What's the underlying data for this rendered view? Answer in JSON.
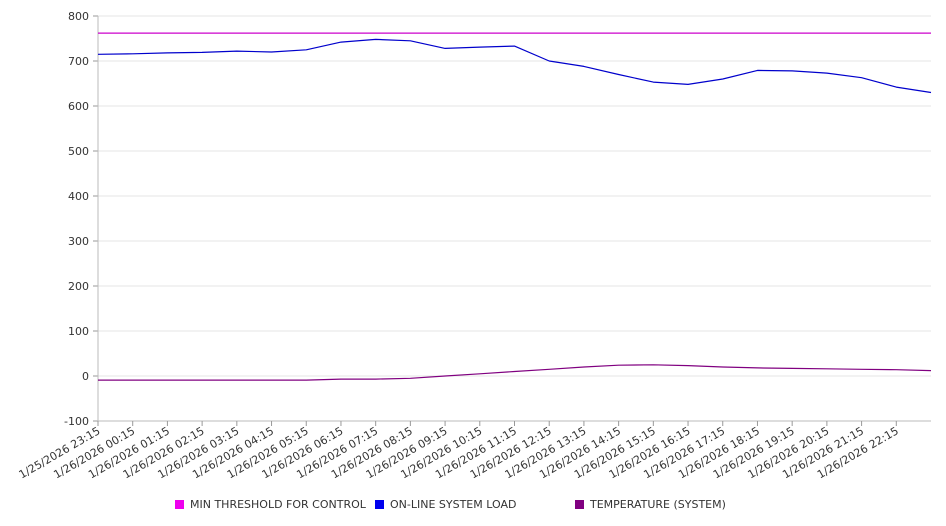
{
  "chart_data": {
    "type": "line",
    "title": "",
    "xlabel": "",
    "ylabel": "",
    "ylim": [
      -100,
      800
    ],
    "y_ticks": [
      "800",
      "700",
      "600",
      "500",
      "400",
      "300",
      "200",
      "100",
      "0",
      "-100"
    ],
    "x_ticks": [
      "1/25/2026 23:15",
      "1/26/2026 00:15",
      "1/26/2026 01:15",
      "1/26/2026 02:15",
      "1/26/2026 03:15",
      "1/26/2026 04:15",
      "1/26/2026 05:15",
      "1/26/2026 06:15",
      "1/26/2026 07:15",
      "1/26/2026 08:15",
      "1/26/2026 09:15",
      "1/26/2026 10:15",
      "1/26/2026 11:15",
      "1/26/2026 12:15",
      "1/26/2026 13:15",
      "1/26/2026 14:15",
      "1/26/2026 15:15",
      "1/26/2026 16:15",
      "1/26/2026 17:15",
      "1/26/2026 18:15",
      "1/26/2026 19:15",
      "1/26/2026 20:15",
      "1/26/2026 21:15",
      "1/26/2026 22:15"
    ],
    "grid": true,
    "legend_position": "bottom",
    "series": [
      {
        "name": "MIN THRESHOLD FOR CONTROL",
        "color": "#cc00cc",
        "values": [
          762,
          762,
          762,
          762,
          762,
          762,
          762,
          762,
          762,
          762,
          762,
          762,
          762,
          762,
          762,
          762,
          762,
          762,
          762,
          762,
          762,
          762,
          762,
          762,
          762
        ]
      },
      {
        "name": "ON-LINE SYSTEM LOAD",
        "color": "#0000cc",
        "values": [
          715,
          716,
          718,
          719,
          722,
          720,
          725,
          742,
          748,
          745,
          728,
          731,
          733,
          700,
          688,
          670,
          653,
          648,
          660,
          679,
          678,
          673,
          663,
          642,
          630
        ]
      },
      {
        "name": "TEMPERATURE (SYSTEM)",
        "color": "#800080",
        "values": [
          -9,
          -9,
          -9,
          -9,
          -9,
          -9,
          -9,
          -7,
          -7,
          -5,
          0,
          5,
          10,
          15,
          20,
          24,
          25,
          23,
          20,
          18,
          17,
          16,
          15,
          14,
          12
        ]
      }
    ]
  }
}
